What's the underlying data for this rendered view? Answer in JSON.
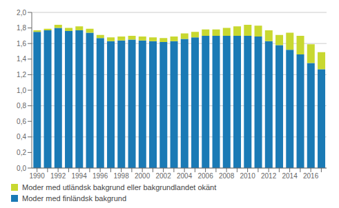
{
  "chart_data": {
    "type": "bar",
    "stacked": true,
    "grid": true,
    "legend": "bottom",
    "categories": [
      "1990",
      null,
      "1992",
      null,
      "1994",
      null,
      "1996",
      null,
      "1998",
      null,
      "2000",
      null,
      "2002",
      null,
      "2004",
      null,
      "2006",
      null,
      "2008",
      null,
      "2010",
      null,
      "2012",
      null,
      "2014",
      null,
      "2016",
      null
    ],
    "series": [
      {
        "name": "Moder med finländsk bakgrund",
        "color": "#1a7ab5",
        "values": [
          1.75,
          1.77,
          1.8,
          1.76,
          1.77,
          1.74,
          1.67,
          1.63,
          1.64,
          1.65,
          1.64,
          1.63,
          1.62,
          1.63,
          1.66,
          1.68,
          1.7,
          1.7,
          1.7,
          1.7,
          1.7,
          1.69,
          1.63,
          1.58,
          1.52,
          1.46,
          1.35,
          1.27
        ]
      },
      {
        "name": "Moder med utländsk bakgrund eller bakgrundlandet okänt",
        "color": "#c8d830",
        "values": [
          0.02,
          0.02,
          0.04,
          0.04,
          0.05,
          0.05,
          0.04,
          0.05,
          0.05,
          0.05,
          0.05,
          0.05,
          0.05,
          0.06,
          0.07,
          0.07,
          0.08,
          0.08,
          0.1,
          0.12,
          0.14,
          0.14,
          0.14,
          0.13,
          0.22,
          0.24,
          0.24,
          0.22
        ]
      }
    ],
    "ylim": [
      0.0,
      2.0
    ],
    "yticks": [
      {
        "value": 0.0,
        "label": "0,0"
      },
      {
        "value": 0.2,
        "label": "0,2"
      },
      {
        "value": 0.4,
        "label": "0,4"
      },
      {
        "value": 0.6,
        "label": "0,6"
      },
      {
        "value": 0.8,
        "label": "0,8"
      },
      {
        "value": 1.0,
        "label": "1,0"
      },
      {
        "value": 1.2,
        "label": "1,2"
      },
      {
        "value": 1.4,
        "label": "1,4"
      },
      {
        "value": 1.6,
        "label": "1,6"
      },
      {
        "value": 1.8,
        "label": "1,8"
      },
      {
        "value": 2.0,
        "label": "2,0"
      }
    ]
  }
}
